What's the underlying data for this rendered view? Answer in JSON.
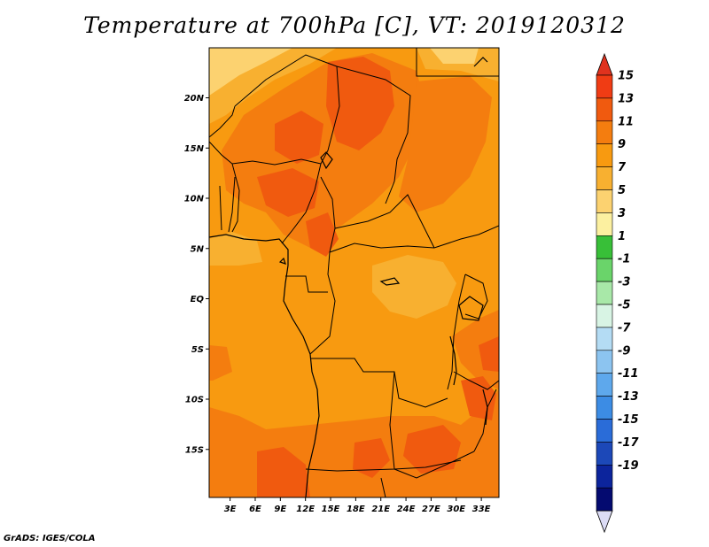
{
  "title": "Temperature at 700hPa [C], VT: 2019120312",
  "credit": "GrADS: IGES/COLA",
  "map": {
    "lat_labels": [
      {
        "label": "20N",
        "lat": 20
      },
      {
        "label": "15N",
        "lat": 15
      },
      {
        "label": "10N",
        "lat": 10
      },
      {
        "label": "5N",
        "lat": 5
      },
      {
        "label": "EQ",
        "lat": 0
      },
      {
        "label": "5S",
        "lat": -5
      },
      {
        "label": "10S",
        "lat": -10
      },
      {
        "label": "15S",
        "lat": -15
      }
    ],
    "lon_labels": [
      {
        "label": "3E",
        "lon": 3
      },
      {
        "label": "6E",
        "lon": 6
      },
      {
        "label": "9E",
        "lon": 9
      },
      {
        "label": "12E",
        "lon": 12
      },
      {
        "label": "15E",
        "lon": 15
      },
      {
        "label": "18E",
        "lon": 18
      },
      {
        "label": "21E",
        "lon": 21
      },
      {
        "label": "24E",
        "lon": 24
      },
      {
        "label": "27E",
        "lon": 27
      },
      {
        "label": "30E",
        "lon": 30
      },
      {
        "label": "33E",
        "lon": 33
      }
    ]
  },
  "colorbar": {
    "labels": [
      "15",
      "13",
      "11",
      "9",
      "7",
      "5",
      "3",
      "1",
      "-1",
      "-3",
      "-5",
      "-7",
      "-9",
      "-11",
      "-13",
      "-15",
      "-17",
      "-19"
    ],
    "colors": [
      "#f03c14",
      "#f05a0f",
      "#f47d0f",
      "#f89a10",
      "#f8b030",
      "#fcd270",
      "#fcf0a0",
      "#38bf38",
      "#6ad46a",
      "#a8e8a8",
      "#d8f4e4",
      "#b4dcf4",
      "#8cc4f0",
      "#5ea8ec",
      "#3c8ce4",
      "#2a6cd8",
      "#1c48b8",
      "#0c249c",
      "#040a70"
    ],
    "top_cap_color": "#e0321e",
    "bottom_cap_color": "#dcdcf6"
  },
  "colors": {
    "base": "#f89a10",
    "warm": "#f47d0f",
    "hot": "#f05a0f",
    "light": "#f8b030",
    "pale": "#fcd270"
  }
}
